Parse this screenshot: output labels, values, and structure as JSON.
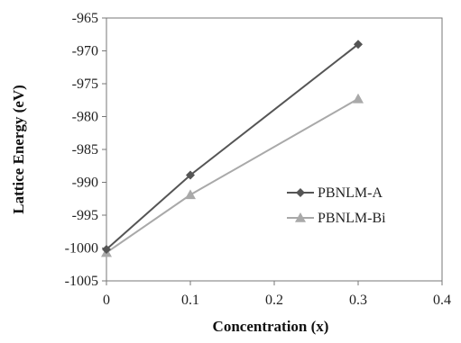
{
  "chart_data": {
    "type": "line",
    "x": [
      0,
      0.1,
      0.3
    ],
    "series": [
      {
        "name": "PBNLM-A",
        "values": [
          -1000.2,
          -988.9,
          -969.0
        ],
        "color": "#555555",
        "marker": "diamond"
      },
      {
        "name": "PBNLM-Bi",
        "values": [
          -1000.7,
          -991.9,
          -977.3
        ],
        "color": "#a9a9a9",
        "marker": "triangle"
      }
    ],
    "xlabel": "Concentration (x)",
    "ylabel": "Lattice Energy (eV)",
    "xlim": [
      0,
      0.4
    ],
    "ylim": [
      -1005,
      -965
    ],
    "x_ticks": [
      "0",
      "0.1",
      "0.2",
      "0.3",
      "0.4"
    ],
    "y_ticks": [
      "-965",
      "-970",
      "-975",
      "-980",
      "-985",
      "-990",
      "-995",
      "-1000",
      "-1005"
    ],
    "grid": false,
    "legend_position": "center-right"
  }
}
